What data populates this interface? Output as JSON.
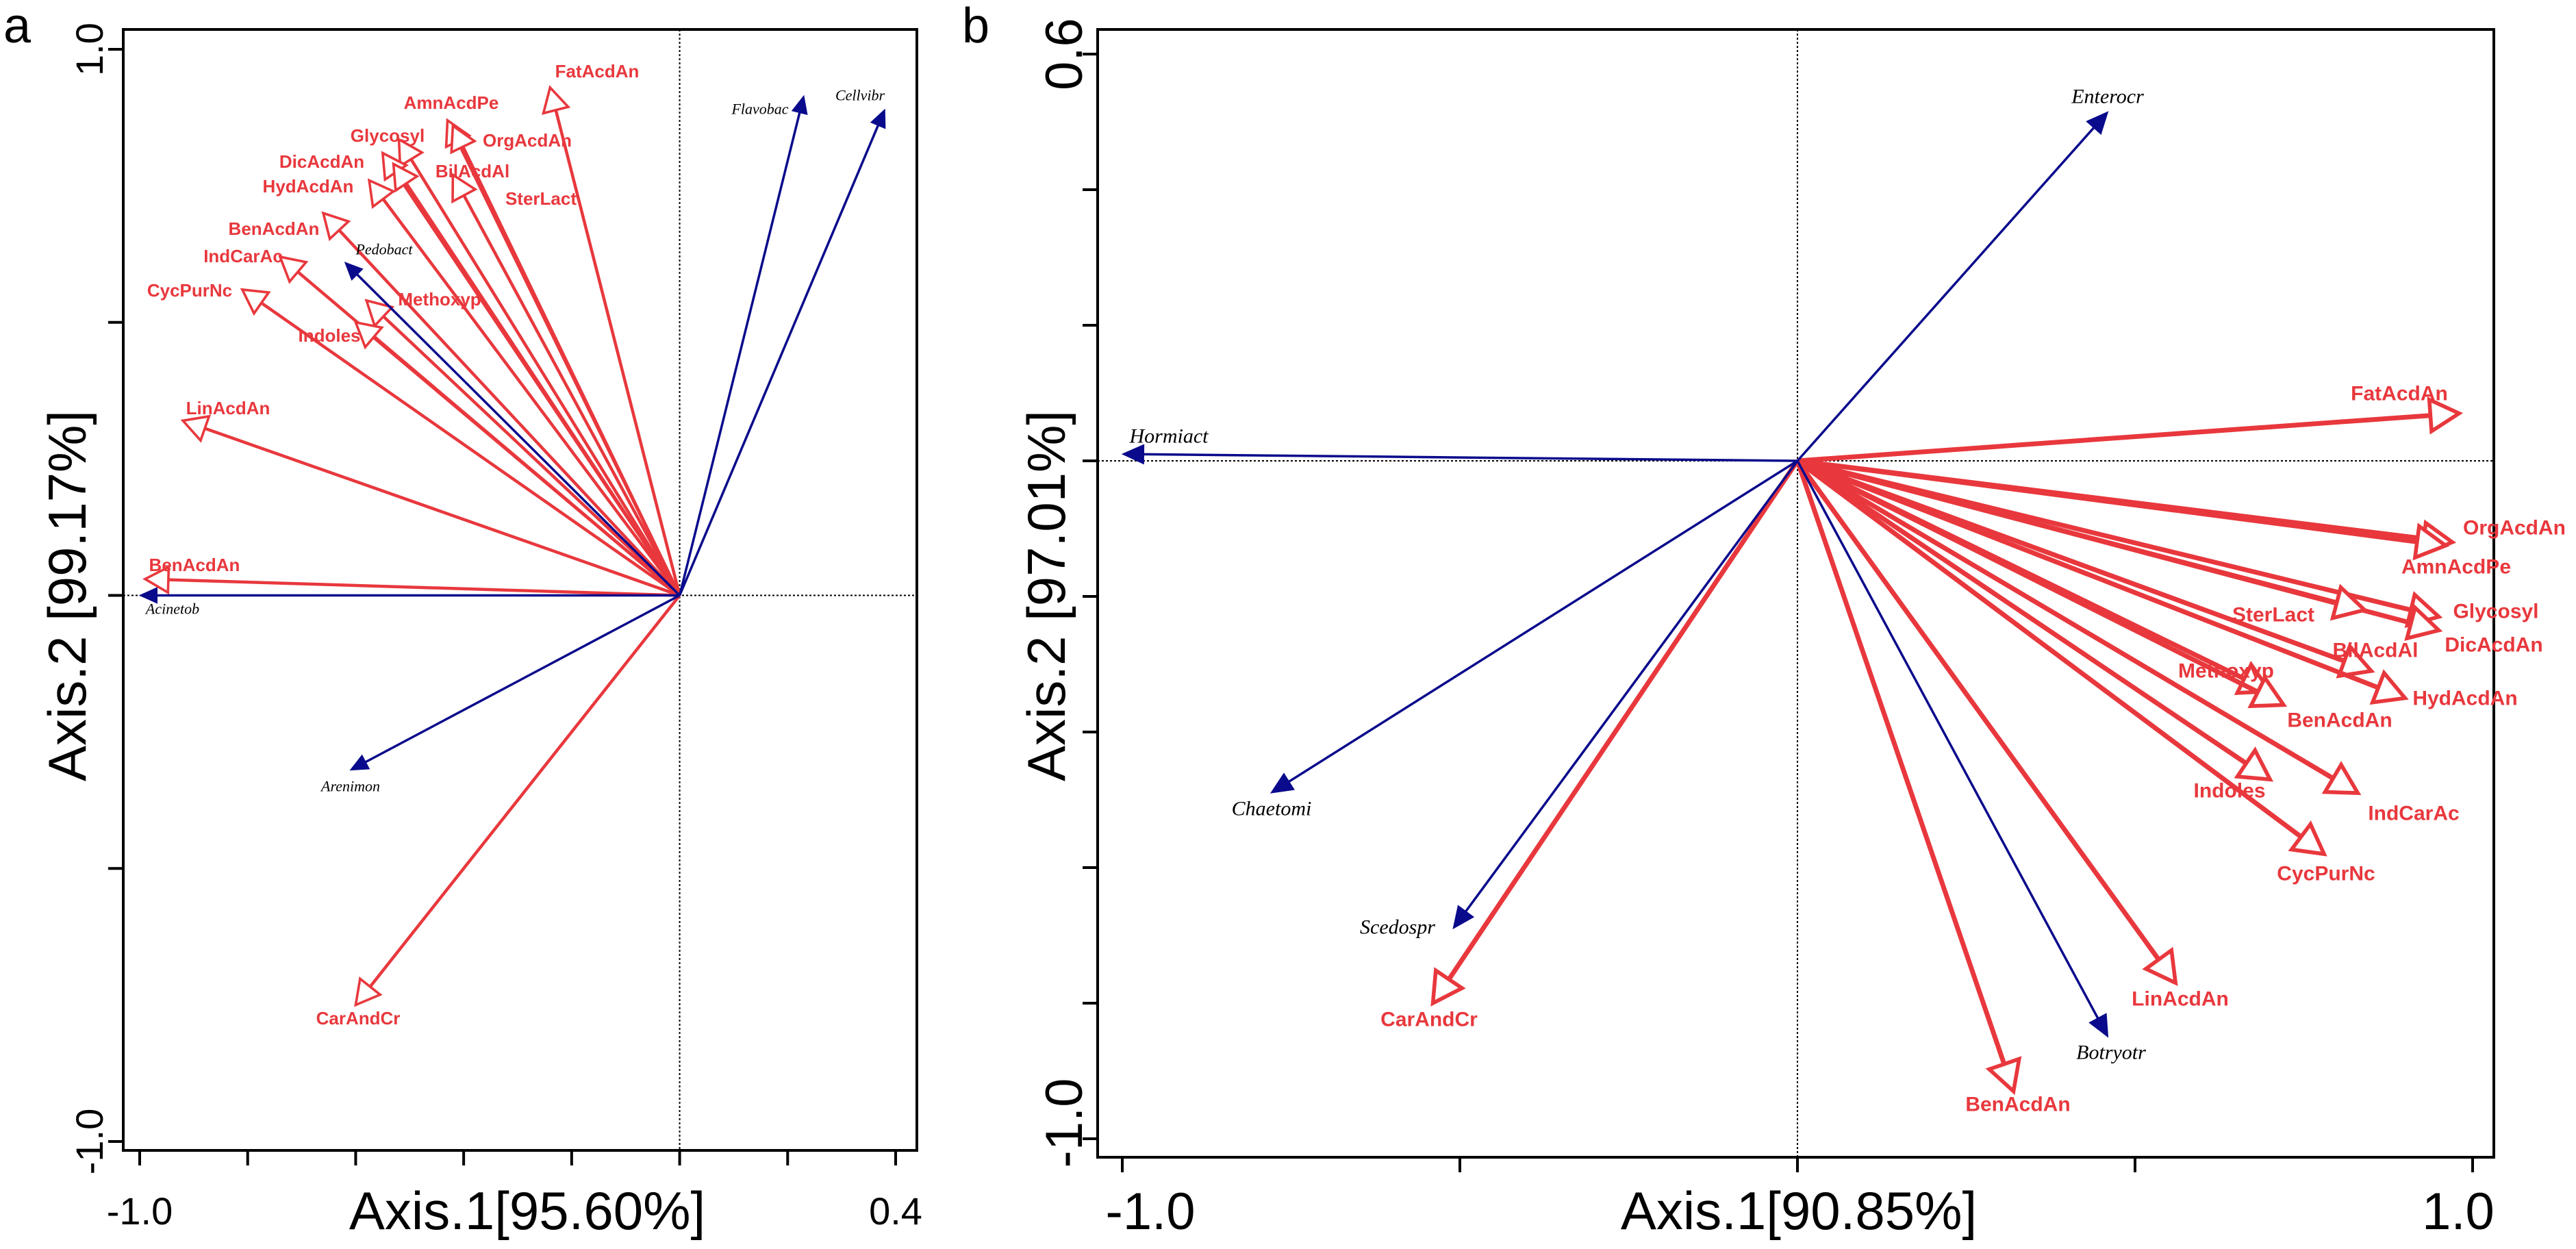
{
  "colors": {
    "env": "#e8383d",
    "taxa": "#0a0a8c",
    "axis": "#000000"
  },
  "chart_data": [
    {
      "type": "scatter",
      "subtype": "biplot",
      "panel_label": "a",
      "xlabel": "Axis.1[95.60%]",
      "ylabel": "Axis.2 [99.17%]",
      "xlim": [
        -1.0,
        0.4
      ],
      "ylim": [
        -1.0,
        1.0
      ],
      "x_tick_labels": [
        "-1.0",
        "0.4"
      ],
      "y_tick_labels": [
        "1.0",
        "-1.0"
      ],
      "reference_lines": "dotted at x=0 and y=0",
      "env_vectors": [
        {
          "name": "FatAcdAn",
          "x": -0.24,
          "y": 0.93
        },
        {
          "name": "AmnAcdPe",
          "x": -0.43,
          "y": 0.87
        },
        {
          "name": "OrgAcdAn",
          "x": -0.42,
          "y": 0.86
        },
        {
          "name": "Glycosyl",
          "x": -0.52,
          "y": 0.835
        },
        {
          "name": "DicAcdAn",
          "x": -0.55,
          "y": 0.81
        },
        {
          "name": "BilAcdAl",
          "x": -0.53,
          "y": 0.79
        },
        {
          "name": "SterLact",
          "x": -0.42,
          "y": 0.77
        },
        {
          "name": "HydAcdAn",
          "x": -0.575,
          "y": 0.76
        },
        {
          "name": "BenAcdAn",
          "x": -0.66,
          "y": 0.7
        },
        {
          "name": "IndCarAc",
          "x": -0.74,
          "y": 0.62
        },
        {
          "name": "CycPurNc",
          "x": -0.81,
          "y": 0.56
        },
        {
          "name": "Methoxyp",
          "x": -0.58,
          "y": 0.54
        },
        {
          "name": "Indoles",
          "x": -0.6,
          "y": 0.5
        },
        {
          "name": "LinAcdAn",
          "x": -0.92,
          "y": 0.32
        },
        {
          "name": "BenAcdAn",
          "x": -0.99,
          "y": 0.03
        },
        {
          "name": "CarAndCr",
          "x": -0.6,
          "y": -0.75
        }
      ],
      "taxa_vectors": [
        {
          "name": "Flavobac",
          "x": 0.23,
          "y": 0.915
        },
        {
          "name": "Cellvibr",
          "x": 0.38,
          "y": 0.89
        },
        {
          "name": "Pedobact",
          "x": -0.62,
          "y": 0.61
        },
        {
          "name": "Acinetob",
          "x": -1.0,
          "y": 0.0
        },
        {
          "name": "Arenimon",
          "x": -0.61,
          "y": -0.32
        }
      ]
    },
    {
      "type": "scatter",
      "subtype": "biplot",
      "panel_label": "b",
      "xlabel": "Axis.1[90.85%]",
      "ylabel": "Axis.2 [97.01%]",
      "xlim": [
        -1.0,
        1.0
      ],
      "ylim": [
        -1.0,
        0.6
      ],
      "x_tick_labels": [
        "-1.0",
        "1.0"
      ],
      "y_tick_labels": [
        "0.6",
        "-1.0"
      ],
      "reference_lines": "dotted at x=0 and y=0",
      "env_vectors": [
        {
          "name": "FatAcdAn",
          "x": 0.98,
          "y": 0.07
        },
        {
          "name": "OrgAcdAn",
          "x": 0.97,
          "y": -0.12
        },
        {
          "name": "AmnAcdPe",
          "x": 0.96,
          "y": -0.125
        },
        {
          "name": "Glycosyl",
          "x": 0.95,
          "y": -0.23
        },
        {
          "name": "DicAcdAn",
          "x": 0.95,
          "y": -0.25
        },
        {
          "name": "SterLact",
          "x": 0.84,
          "y": -0.22
        },
        {
          "name": "BilAcdAl",
          "x": 0.85,
          "y": -0.31
        },
        {
          "name": "HydAcdAn",
          "x": 0.9,
          "y": -0.35
        },
        {
          "name": "Methoxyp",
          "x": 0.7,
          "y": -0.34
        },
        {
          "name": "BenAcdAn",
          "x": 0.72,
          "y": -0.36
        },
        {
          "name": "Indoles",
          "x": 0.7,
          "y": -0.47
        },
        {
          "name": "IndCarAc",
          "x": 0.83,
          "y": -0.49
        },
        {
          "name": "CycPurNc",
          "x": 0.78,
          "y": -0.58
        },
        {
          "name": "LinAcdAn",
          "x": 0.56,
          "y": -0.77
        },
        {
          "name": "BenAcdAn",
          "x": 0.32,
          "y": -0.93
        },
        {
          "name": "CarAndCr",
          "x": -0.54,
          "y": -0.8
        }
      ],
      "taxa_vectors": [
        {
          "name": "Enterocr",
          "x": 0.46,
          "y": 0.515
        },
        {
          "name": "Hormiact",
          "x": -1.0,
          "y": 0.01
        },
        {
          "name": "Chaetomi",
          "x": -0.78,
          "y": -0.49
        },
        {
          "name": "Scedospr",
          "x": -0.51,
          "y": -0.69
        },
        {
          "name": "Botryotr",
          "x": 0.46,
          "y": -0.85
        }
      ]
    }
  ]
}
